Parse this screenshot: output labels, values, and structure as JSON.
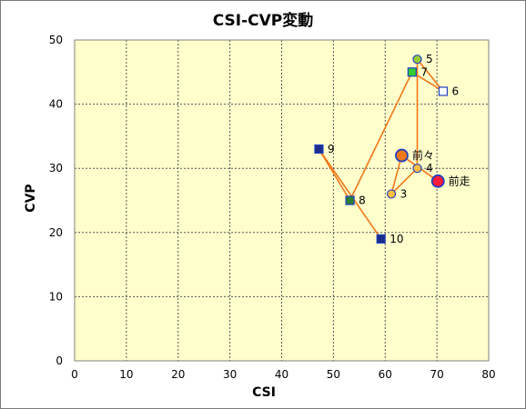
{
  "chart_data": {
    "type": "scatter",
    "title": "CSI-CVP変動",
    "xlabel": "CSI",
    "ylabel": "CVP",
    "xlim": [
      0,
      80
    ],
    "ylim": [
      0,
      50
    ],
    "xticks": [
      0,
      10,
      20,
      30,
      40,
      50,
      60,
      70,
      80
    ],
    "yticks": [
      0,
      10,
      20,
      30,
      40,
      50
    ],
    "grid": true,
    "plot_background": "#FFFFCC",
    "line_color": "#F07818",
    "points": [
      {
        "label": "前走",
        "x": 70.2,
        "y": 28.0,
        "shape": "circle",
        "size": "large",
        "fill": "#FF1C3C",
        "stroke": "#2040C0"
      },
      {
        "label": "前々",
        "x": 63.2,
        "y": 32.0,
        "shape": "circle",
        "size": "large",
        "fill": "#F07818",
        "stroke": "#2040C0"
      },
      {
        "label": "3",
        "x": 61.2,
        "y": 26.0,
        "shape": "circle",
        "size": "small",
        "fill": "#FFC040",
        "stroke": "#2040C0"
      },
      {
        "label": "4",
        "x": 66.2,
        "y": 30.0,
        "shape": "circle",
        "size": "small",
        "fill": "#FFC040",
        "stroke": "#2040C0"
      },
      {
        "label": "5",
        "x": 66.2,
        "y": 47.0,
        "shape": "circle",
        "size": "small",
        "fill": "#9ACD32",
        "stroke": "#2040C0"
      },
      {
        "label": "6",
        "x": 71.2,
        "y": 42.0,
        "shape": "square",
        "size": "small",
        "fill": "#FFFFFF",
        "stroke": "#2040C0"
      },
      {
        "label": "7",
        "x": 65.2,
        "y": 45.0,
        "shape": "square",
        "size": "small",
        "fill": "#33CC33",
        "stroke": "#2040C0"
      },
      {
        "label": "8",
        "x": 53.2,
        "y": 25.0,
        "shape": "square",
        "size": "small",
        "fill": "#2E7D32",
        "stroke": "#2040C0"
      },
      {
        "label": "9",
        "x": 47.2,
        "y": 33.0,
        "shape": "square",
        "size": "small",
        "fill": "#1A2E8C",
        "stroke": "#2040C0"
      },
      {
        "label": "10",
        "x": 59.2,
        "y": 19.0,
        "shape": "square",
        "size": "small",
        "fill": "#1A2E8C",
        "stroke": "#2040C0"
      }
    ],
    "connections": [
      [
        0,
        1
      ],
      [
        1,
        2
      ],
      [
        2,
        3
      ],
      [
        3,
        4
      ],
      [
        4,
        5
      ],
      [
        5,
        6
      ],
      [
        6,
        7
      ],
      [
        7,
        8
      ],
      [
        8,
        9
      ]
    ]
  }
}
